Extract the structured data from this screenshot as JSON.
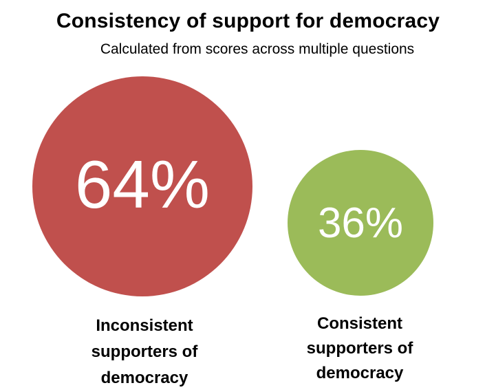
{
  "chart_data": {
    "type": "bubble",
    "title": "Consistency of support for democracy",
    "subtitle": "Calculated from scores across multiple questions",
    "categories": [
      "Inconsistent supporters of democracy",
      "Consistent supporters of democracy"
    ],
    "values": [
      64,
      36
    ],
    "value_labels": [
      "64%",
      "36%"
    ],
    "colors": [
      "#c0504d",
      "#9bbb59"
    ],
    "label_lines": [
      "Inconsistent\nsupporters of\ndemocracy",
      "Consistent\nsupporters of\ndemocracy"
    ]
  }
}
